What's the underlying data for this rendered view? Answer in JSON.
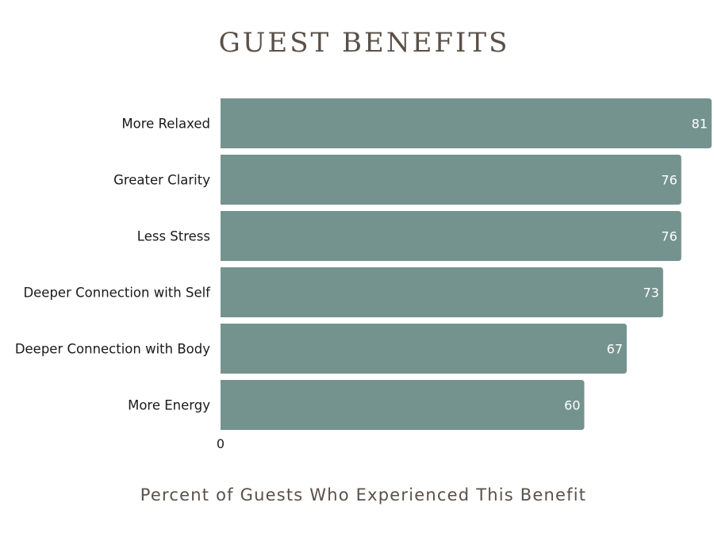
{
  "chart_data": {
    "type": "bar",
    "orientation": "horizontal",
    "title": "GUEST BENEFITS",
    "xlabel": "Percent of Guests Who Experienced This Benefit",
    "ylabel": "",
    "categories": [
      "More Relaxed",
      "Greater Clarity",
      "Less Stress",
      "Deeper Connection with Self",
      "Deeper Connection with Body",
      "More Energy"
    ],
    "values": [
      81,
      76,
      76,
      73,
      67,
      60
    ],
    "x_tick_labels": [
      "0"
    ],
    "xlim": [
      0,
      81
    ],
    "bar_color": "#74938f",
    "value_label_color": "#ffffff",
    "grid": false,
    "legend": "none"
  }
}
